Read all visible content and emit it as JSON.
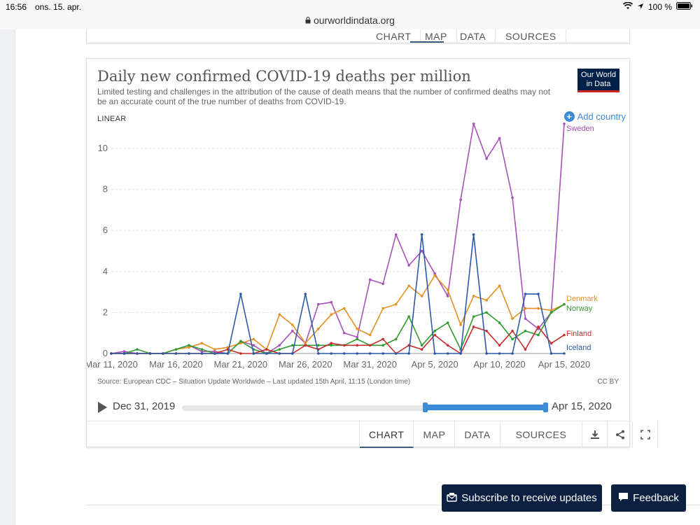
{
  "status": {
    "time": "16:56",
    "date": "ons. 15. apr.",
    "battery": "100 %"
  },
  "url": "ourworldindata.org",
  "top_tabs": [
    "CHART",
    "MAP",
    "DATA",
    "SOURCES"
  ],
  "title": "Daily new confirmed COVID-19 deaths per million",
  "subtitle": "Limited testing and challenges in the attribution of the cause of death means that the number of confirmed deaths may not be an accurate count of the true number of deaths from COVID-19.",
  "logo": "Our World in Data",
  "scale_toggle": "LINEAR",
  "add_country": "Add country",
  "source": "Source: European CDC – Situation Update Worldwide – Last updated 15th April, 11:15 (London time)",
  "license": "CC BY",
  "timeline": {
    "start": "Dec 31, 2019",
    "end": "Apr 15, 2020",
    "range_start_fraction": 0.67,
    "range_end_fraction": 1.0
  },
  "tabs": [
    "CHART",
    "MAP",
    "DATA",
    "SOURCES"
  ],
  "buttons": {
    "subscribe": "Subscribe to receive updates",
    "feedback": "Feedback"
  },
  "chart_data": {
    "type": "line",
    "title": "Daily new confirmed COVID-19 deaths per million",
    "xlabel": "",
    "ylabel": "",
    "ylim": [
      0,
      11.3
    ],
    "y_ticks": [
      0,
      2,
      4,
      6,
      8,
      10
    ],
    "x_tick_labels": [
      "Mar 11, 2020",
      "Mar 16, 2020",
      "Mar 21, 2020",
      "Mar 26, 2020",
      "Mar 31, 2020",
      "Apr 5, 2020",
      "Apr 10, 2020",
      "Apr 15, 2020"
    ],
    "x_tick_days": [
      0,
      5,
      10,
      15,
      20,
      25,
      30,
      35
    ],
    "x_days_label": "days from Mar 11, 2020",
    "grid": "horizontal dashed",
    "legend": "right end labels",
    "series": [
      {
        "name": "Sweden",
        "color": "#a652ba",
        "values": [
          0,
          0.1,
          0,
          0,
          0,
          0.2,
          0.4,
          0.1,
          0.1,
          0,
          0.6,
          0.4,
          0,
          0.4,
          1.1,
          0.5,
          2.4,
          2.5,
          1.0,
          0.8,
          3.6,
          3.4,
          5.8,
          4.3,
          5.0,
          3.9,
          2.8,
          7.5,
          11.2,
          9.5,
          10.5,
          7.6,
          1.7,
          1.2,
          2.0,
          11.2
        ]
      },
      {
        "name": "Denmark",
        "color": "#e39024",
        "values": [
          0,
          0,
          0,
          0,
          0,
          0.2,
          0.3,
          0.5,
          0.2,
          0.3,
          0.5,
          0.7,
          0.2,
          1.9,
          1.4,
          0.5,
          1.2,
          1.9,
          2.2,
          1.2,
          0.9,
          2.2,
          2.4,
          3.3,
          2.8,
          3.8,
          3.1,
          1.4,
          2.8,
          2.6,
          3.3,
          1.7,
          2.2,
          2.2,
          2.1,
          2.4
        ]
      },
      {
        "name": "Norway",
        "color": "#2e9c2e",
        "values": [
          0,
          0,
          0.2,
          0,
          0,
          0.2,
          0.4,
          0.2,
          0,
          0,
          0.6,
          0.2,
          0,
          0.2,
          0.4,
          0.4,
          0.4,
          0.4,
          0.4,
          0.7,
          0.4,
          0.4,
          0.7,
          1.8,
          0.4,
          1.1,
          1.5,
          0.2,
          1.8,
          2.0,
          1.5,
          0.7,
          1.1,
          0.9,
          2.0,
          2.4
        ]
      },
      {
        "name": "Finland",
        "color": "#c62d2d",
        "values": [
          0,
          0,
          0,
          0,
          0,
          0,
          0,
          0,
          0,
          0.2,
          0,
          0,
          0.2,
          0,
          0,
          0.4,
          0.2,
          0.5,
          0.4,
          0.4,
          0.4,
          0.7,
          0,
          0.4,
          0.2,
          0.9,
          0.4,
          0,
          1.3,
          1.1,
          0.4,
          1.1,
          0.2,
          1.3,
          0.5,
          0.9
        ]
      },
      {
        "name": "Iceland",
        "color": "#2d5aa6",
        "values": [
          0,
          0,
          0,
          0,
          0,
          0,
          0,
          0,
          0,
          0,
          2.9,
          0,
          0,
          0,
          0,
          2.9,
          0,
          0,
          0,
          0,
          0,
          0,
          0,
          0,
          5.8,
          0,
          0,
          0,
          5.8,
          0,
          0,
          0,
          2.9,
          2.9,
          0,
          0
        ]
      }
    ]
  }
}
